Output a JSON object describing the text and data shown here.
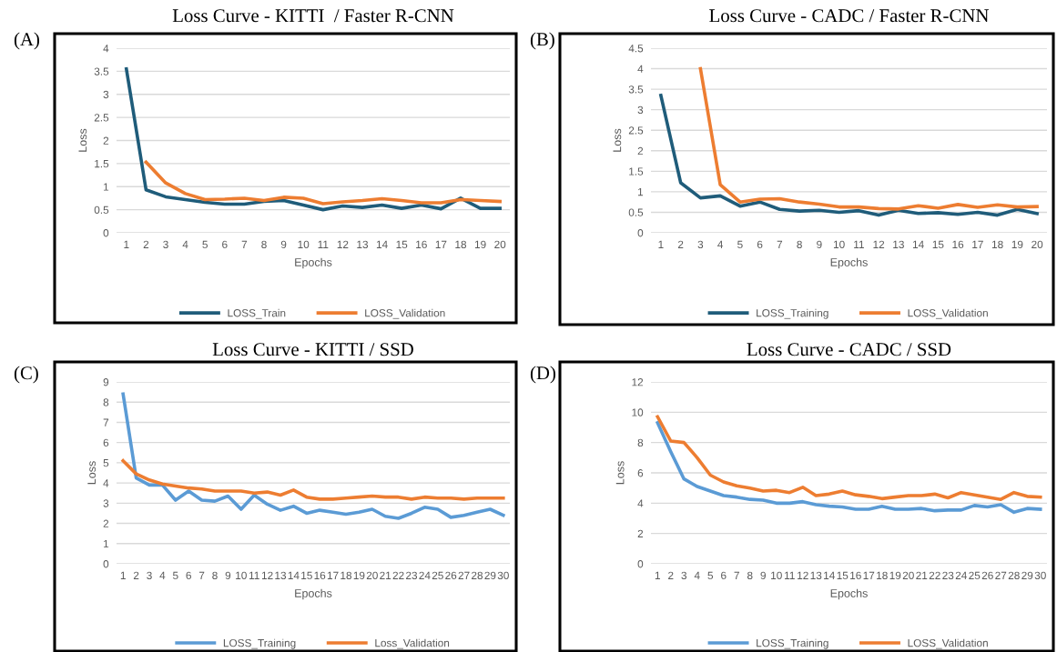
{
  "chart_data": [
    {
      "type": "line",
      "title": "Loss Curve - KITTI  / Faster R-CNN",
      "xlabel": "Epochs",
      "ylabel": "Loss",
      "annotations": [
        "(A)"
      ],
      "categories": [
        "1",
        "2",
        "3",
        "4",
        "5",
        "6",
        "7",
        "8",
        "9",
        "10",
        "11",
        "12",
        "13",
        "14",
        "15",
        "16",
        "17",
        "18",
        "19",
        "20"
      ],
      "ylim": [
        0,
        4
      ],
      "yticks": [
        0,
        0.5,
        1,
        1.5,
        2,
        2.5,
        3,
        3.5,
        4
      ],
      "grid": "y",
      "legend": "bottom",
      "series": [
        {
          "name": "LOSS_Train",
          "color": "#1f5c7a",
          "values": [
            3.55,
            0.93,
            0.78,
            0.72,
            0.66,
            0.62,
            0.62,
            0.68,
            0.7,
            0.6,
            0.5,
            0.58,
            0.55,
            0.6,
            0.53,
            0.6,
            0.52,
            0.75,
            0.53,
            0.53
          ]
        },
        {
          "name": "LOSS_Validation",
          "color": "#ed7d31",
          "values": [
            null,
            1.53,
            1.08,
            0.85,
            0.72,
            0.73,
            0.75,
            0.7,
            0.77,
            0.75,
            0.63,
            0.67,
            0.7,
            0.74,
            0.7,
            0.65,
            0.65,
            0.72,
            0.7,
            0.68
          ]
        }
      ]
    },
    {
      "type": "line",
      "title": "Loss Curve - CADC / Faster R-CNN",
      "xlabel": "Epochs",
      "ylabel": "Loss",
      "annotations": [
        "(B)"
      ],
      "categories": [
        "1",
        "2",
        "3",
        "4",
        "5",
        "6",
        "7",
        "8",
        "9",
        "10",
        "11",
        "12",
        "13",
        "14",
        "15",
        "16",
        "17",
        "18",
        "19",
        "20"
      ],
      "ylim": [
        0,
        4.5
      ],
      "yticks": [
        0,
        0.5,
        1,
        1.5,
        2,
        2.5,
        3,
        3.5,
        4,
        4.5
      ],
      "grid": "y",
      "legend": "bottom",
      "series": [
        {
          "name": "LOSS_Training",
          "color": "#1f5c7a",
          "values": [
            3.35,
            1.22,
            0.85,
            0.9,
            0.65,
            0.75,
            0.57,
            0.53,
            0.55,
            0.5,
            0.54,
            0.43,
            0.55,
            0.47,
            0.49,
            0.45,
            0.5,
            0.43,
            0.57,
            0.47
          ]
        },
        {
          "name": "LOSS_Validation",
          "color": "#ed7d31",
          "values": [
            null,
            null,
            4.0,
            1.17,
            0.75,
            0.82,
            0.83,
            0.75,
            0.7,
            0.63,
            0.63,
            0.59,
            0.58,
            0.66,
            0.6,
            0.69,
            0.62,
            0.68,
            0.63,
            0.64
          ]
        }
      ]
    },
    {
      "type": "line",
      "title": "Loss Curve - KITTI / SSD",
      "xlabel": "Epochs",
      "ylabel": "Loss",
      "annotations": [
        "(C)"
      ],
      "categories": [
        "1",
        "2",
        "3",
        "4",
        "5",
        "6",
        "7",
        "8",
        "9",
        "10",
        "11",
        "12",
        "13",
        "14",
        "15",
        "16",
        "17",
        "18",
        "19",
        "20",
        "21",
        "22",
        "23",
        "24",
        "25",
        "26",
        "27",
        "28",
        "29",
        "30"
      ],
      "ylim": [
        0,
        9
      ],
      "yticks": [
        0,
        1,
        2,
        3,
        4,
        5,
        6,
        7,
        8,
        9
      ],
      "grid": "y",
      "legend": "bottom",
      "series": [
        {
          "name": "LOSS_Training",
          "color": "#5b9bd5",
          "values": [
            8.4,
            4.25,
            3.9,
            3.9,
            3.15,
            3.6,
            3.15,
            3.1,
            3.35,
            2.7,
            3.4,
            2.95,
            2.65,
            2.85,
            2.5,
            2.65,
            2.55,
            2.45,
            2.55,
            2.7,
            2.35,
            2.25,
            2.5,
            2.8,
            2.7,
            2.3,
            2.4,
            2.55,
            2.7,
            2.4
          ]
        },
        {
          "name": "Loss_Validation",
          "color": "#ed7d31",
          "values": [
            5.1,
            4.45,
            4.15,
            3.95,
            3.85,
            3.75,
            3.7,
            3.6,
            3.6,
            3.6,
            3.5,
            3.55,
            3.4,
            3.65,
            3.3,
            3.2,
            3.2,
            3.25,
            3.3,
            3.35,
            3.3,
            3.3,
            3.2,
            3.3,
            3.25,
            3.25,
            3.2,
            3.25,
            3.25,
            3.25
          ]
        }
      ]
    },
    {
      "type": "line",
      "title": "Loss Curve - CADC / SSD",
      "xlabel": "Epochs",
      "ylabel": "Loss",
      "annotations": [
        "(D)"
      ],
      "categories": [
        "1",
        "2",
        "3",
        "4",
        "5",
        "6",
        "7",
        "8",
        "9",
        "10",
        "11",
        "12",
        "13",
        "14",
        "15",
        "16",
        "17",
        "18",
        "19",
        "20",
        "21",
        "22",
        "23",
        "24",
        "25",
        "26",
        "27",
        "28",
        "29",
        "30"
      ],
      "ylim": [
        0,
        12
      ],
      "yticks": [
        0,
        2,
        4,
        6,
        8,
        10,
        12
      ],
      "grid": "y",
      "legend": "bottom",
      "series": [
        {
          "name": "LOSS_Training",
          "color": "#5b9bd5",
          "values": [
            9.3,
            7.4,
            5.6,
            5.1,
            4.8,
            4.5,
            4.4,
            4.25,
            4.2,
            4.0,
            4.0,
            4.1,
            3.9,
            3.8,
            3.75,
            3.6,
            3.6,
            3.8,
            3.6,
            3.6,
            3.65,
            3.5,
            3.55,
            3.55,
            3.85,
            3.75,
            3.9,
            3.4,
            3.65,
            3.6
          ]
        },
        {
          "name": "LOSS_Validation",
          "color": "#ed7d31",
          "values": [
            9.7,
            8.1,
            8.0,
            7.0,
            5.85,
            5.4,
            5.15,
            5.0,
            4.8,
            4.85,
            4.7,
            5.05,
            4.5,
            4.6,
            4.8,
            4.55,
            4.45,
            4.3,
            4.4,
            4.5,
            4.5,
            4.6,
            4.35,
            4.7,
            4.55,
            4.4,
            4.25,
            4.7,
            4.45,
            4.4
          ]
        }
      ]
    }
  ]
}
